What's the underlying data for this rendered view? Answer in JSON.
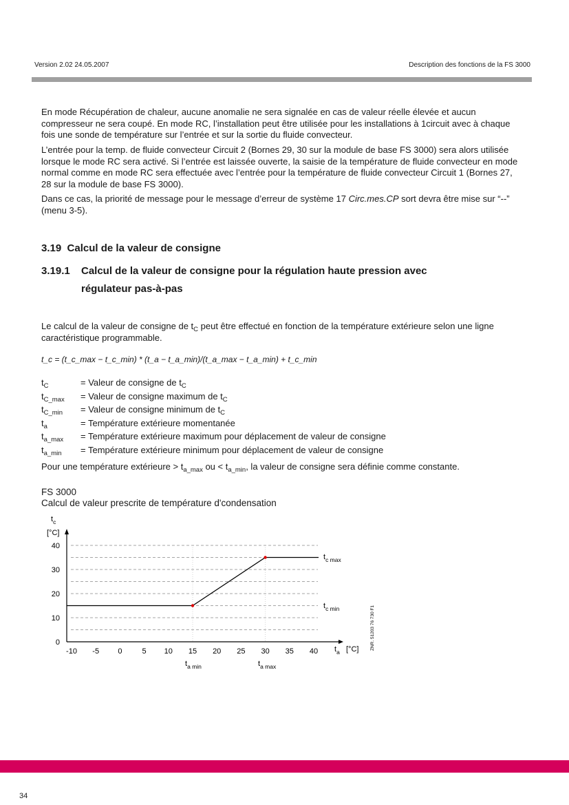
{
  "header": {
    "left": "Version 2.02   24.05.2007",
    "right": "Description des fonctions de la FS 3000"
  },
  "paragraphs": [
    "En mode Récupération de chaleur, aucune anomalie ne sera signalée en cas de valeur réelle élevée et aucun compresseur ne sera coupé. En mode RC,  l’installation peut être utilisée pour les installations à 1circuit avec à chaque fois une sonde de température sur l’entrée et sur la sortie du fluide convecteur.",
    "L’entrée pour la temp. de fluide convecteur Circuit 2 (Bornes 29, 30 sur la module de base FS 3000) sera alors utilisée lorsque le mode RC sera activé. Si l’entrée est laissée ouverte, la saisie de la température de fluide convecteur en mode normal comme en mode RC sera effectuée avec l’entrée pour la température de fluide convecteur Circuit 1 (Bornes 27, 28 sur la module de base FS 3000)."
  ],
  "p3": {
    "a": "Dans ce cas, la priorité de message pour le message d’erreur de système 17 ",
    "b": "Circ.mes.CP",
    "c": " sort devra être mise sur “--” (menu 3-5)."
  },
  "h1": {
    "num": "3.19",
    "title": "Calcul de la valeur de consigne"
  },
  "h2": {
    "num": "3.19.1",
    "line1": "Calcul de la valeur de consigne pour la régulation haute pression avec",
    "line2": "régulateur pas-à-pas"
  },
  "intro": {
    "a": "Le calcul de la valeur de consigne de t",
    "sub": "C",
    "b": " peut être effectué en fonction de la température extérieure selon une ligne caractéristique programmable."
  },
  "formula": "t_c = (t_c_max − t_c_min) * (t_a − t_a_min)/(t_a_max − t_a_min) + t_c_min",
  "definitions": [
    {
      "sym": "t",
      "sub": "C",
      "text": "= Valeur de consigne de t",
      "tsub": "C"
    },
    {
      "sym": "t",
      "sub": "C_max",
      "text": "= Valeur de consigne maximum de t",
      "tsub": "C"
    },
    {
      "sym": "t",
      "sub": "C_min",
      "text": "= Valeur de consigne minimum de t",
      "tsub": "C"
    },
    {
      "sym": "t",
      "sub": "a",
      "text": "= Température extérieure momentanée",
      "tsub": ""
    },
    {
      "sym": "t",
      "sub": "a_max",
      "text": "= Température extérieure maximum pour déplacement de valeur de consigne",
      "tsub": ""
    },
    {
      "sym": "t",
      "sub": "a_min",
      "text": "= Température extérieure minimum pour déplacement de valeur de consigne",
      "tsub": ""
    }
  ],
  "constant": {
    "a": "Pour une température extérieure > t",
    "s1": "a_max",
    "b": " ou < t",
    "s2": "a_min",
    "c": ", la valeur de consigne sera définie comme constante."
  },
  "chart_caption": {
    "line1": "FS 3000",
    "line2": "Calcul de valeur prescrite de température d'condensation"
  },
  "chart_data": {
    "type": "line",
    "ylabel": "tc [°C]",
    "xlabel": "ta [°C]",
    "xlim": [
      -11,
      41
    ],
    "ylim": [
      0,
      40
    ],
    "xticks": [
      -10,
      -5,
      0,
      5,
      10,
      15,
      20,
      25,
      30,
      35,
      40
    ],
    "yticks": [
      0,
      10,
      20,
      30,
      40
    ],
    "grid": "dashed horizontal every 5",
    "series": [
      {
        "x": [
          -11,
          15,
          30,
          41
        ],
        "y": [
          15,
          15,
          35,
          35
        ],
        "color": "#000000"
      }
    ],
    "points": [
      {
        "x": 15,
        "y": 15,
        "color": "#e00000"
      },
      {
        "x": 30,
        "y": 35,
        "color": "#e00000"
      }
    ],
    "annotations": [
      "tc max",
      "tc min",
      "ta min",
      "ta max"
    ],
    "side_note": "ZNR. 51203 76 730 F1"
  },
  "footer": {
    "page": "34",
    "bar_color": "#d5005b",
    "rule_color": "#a0a0a0"
  }
}
